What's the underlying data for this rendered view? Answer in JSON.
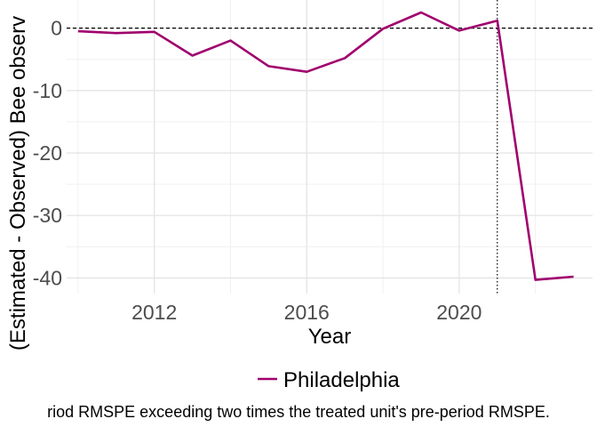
{
  "chart_data": {
    "type": "line",
    "title": "",
    "xlabel": "Year",
    "ylabel": "(Estimated - Observed) Bee observ",
    "xlim": [
      2009.7,
      2023.5
    ],
    "ylim": [
      -42.5,
      4.5
    ],
    "x_ticks": [
      2012,
      2016,
      2020
    ],
    "y_ticks": [
      0,
      -10,
      -20,
      -30,
      -40
    ],
    "x_tick_labels": [
      "2012",
      "2016",
      "2020"
    ],
    "y_tick_labels": [
      "0",
      "-10",
      "-20",
      "-30",
      "-40"
    ],
    "reference_lines": {
      "horizontal_y": 0,
      "horizontal_style": "dashed",
      "vertical_x": 2021,
      "vertical_style": "dotted"
    },
    "grid": true,
    "legend": {
      "position": "bottom"
    },
    "series": [
      {
        "name": "Philadelphia",
        "color": "#a0006e",
        "x": [
          2010,
          2011,
          2012,
          2013,
          2014,
          2015,
          2016,
          2017,
          2018,
          2019,
          2020,
          2021,
          2022,
          2023
        ],
        "values": [
          -0.5,
          -0.8,
          -0.6,
          -4.4,
          -2.0,
          -6.1,
          -7.0,
          -4.8,
          -0.1,
          2.5,
          -0.4,
          1.2,
          -40.3,
          -39.8
        ]
      }
    ],
    "caption": "riod RMSPE exceeding two times the treated unit's pre-period RMSPE."
  }
}
